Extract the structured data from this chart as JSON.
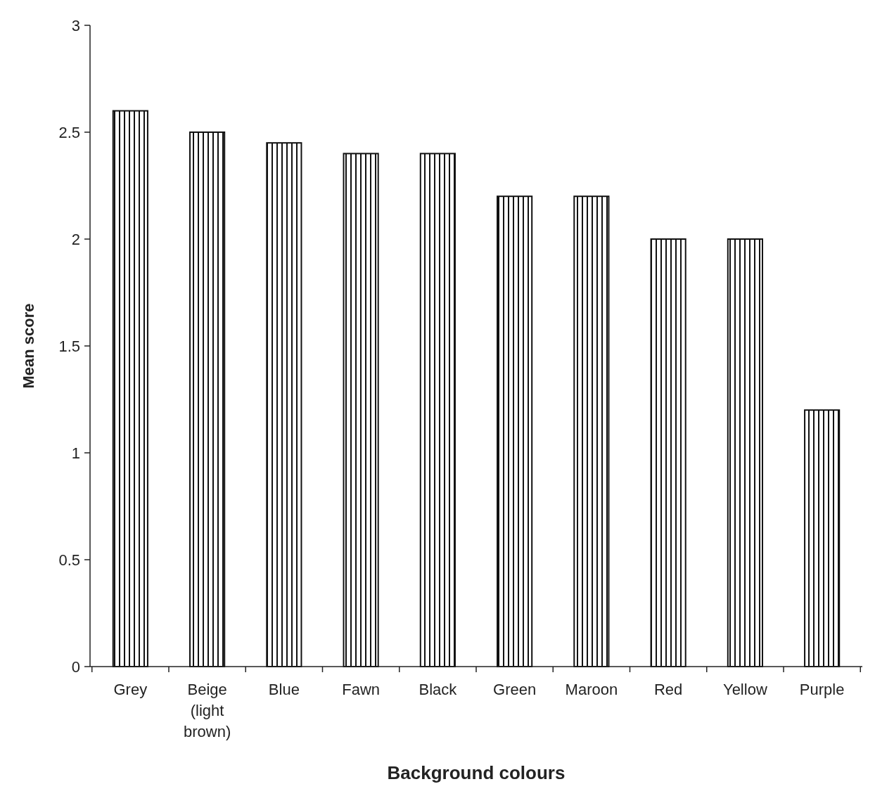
{
  "chart_data": {
    "type": "bar",
    "xlabel": "Background colours",
    "ylabel": "Mean score",
    "categories": [
      "Grey",
      "Beige (light brown)",
      "Blue",
      "Fawn",
      "Black",
      "Green",
      "Maroon",
      "Red",
      "Yellow",
      "Purple"
    ],
    "values": [
      2.6,
      2.5,
      2.45,
      2.4,
      2.4,
      2.2,
      2.2,
      2.0,
      2.0,
      1.2
    ],
    "color": "#111111",
    "ylim": [
      0,
      3
    ],
    "yticks": [
      0,
      0.5,
      1,
      1.5,
      2,
      2.5,
      3
    ],
    "grid": false
  }
}
